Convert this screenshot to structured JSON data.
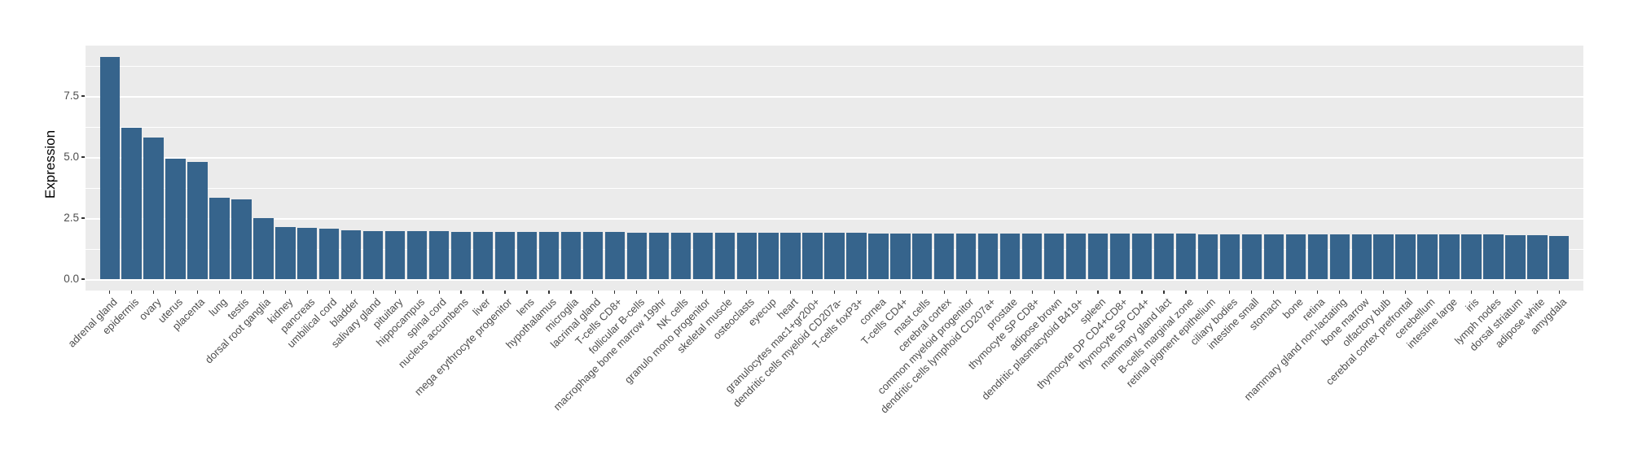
{
  "chart_data": {
    "type": "bar",
    "title": "",
    "xlabel": "",
    "ylabel": "Expression",
    "legend_position": "none",
    "grid": true,
    "y_ticks": [
      0.0,
      2.5,
      5.0,
      7.5
    ],
    "y_tick_labels": [
      "0.0",
      "2.5",
      "5.0",
      "7.5"
    ],
    "y_minor_ticks": [
      1.25,
      3.75,
      6.25,
      8.75
    ],
    "ylim": [
      -0.46,
      9.57
    ],
    "colors": {
      "bar": "#36648C",
      "panel_bg": "#EBEBEB",
      "grid": "#FFFFFF",
      "tick_label": "#4D4D4D",
      "axis_title": "#000000",
      "tick_mark": "#333333"
    },
    "categories": [
      "adrenal gland",
      "epidermis",
      "ovary",
      "uterus",
      "placenta",
      "lung",
      "testis",
      "dorsal root ganglia",
      "kidney",
      "pancreas",
      "umbilical cord",
      "bladder",
      "salivary gland",
      "pituitary",
      "hippocampus",
      "spinal cord",
      "nucleus accumbens",
      "liver",
      "mega erythrocyte progenitor",
      "lens",
      "hypothalamus",
      "microglia",
      "lacrimal gland",
      "T-cells CD8+",
      "follicular B-cells",
      "macrophage bone marrow 199hr",
      "NK cells",
      "granulo mono progenitor",
      "skeletal muscle",
      "osteoclasts",
      "eyecup",
      "heart",
      "granulocytes mac1+gr200+",
      "dendritic cells myeloid CD207a-",
      "T-cells foxP3+",
      "cornea",
      "T-cells CD4+",
      "mast cells",
      "cerebral cortex",
      "common myeloid progenitor",
      "dendritic cells lymphoid CD207a+",
      "prostate",
      "thymocyte SP CD8+",
      "adipose brown",
      "dendritic plasmacytoid B419+",
      "spleen",
      "thymocyte DP CD4+CD8+",
      "thymocyte SP CD4+",
      "mammary gland lact",
      "B-cells marginal zone",
      "retinal pigment epithelium",
      "ciliary bodies",
      "intestine small",
      "stomach",
      "bone",
      "retina",
      "mammary gland non-lactating",
      "bone marrow",
      "olfactory bulb",
      "cerebral cortex prefrontal",
      "cerebellum",
      "intestine large",
      "iris",
      "lymph nodes",
      "dorsal striatum",
      "adipose white",
      "amygdala"
    ],
    "values": [
      9.1,
      6.2,
      5.8,
      4.95,
      4.8,
      3.33,
      3.26,
      2.5,
      2.15,
      2.1,
      2.07,
      2.0,
      1.98,
      1.97,
      1.96,
      1.96,
      1.95,
      1.94,
      1.94,
      1.93,
      1.93,
      1.92,
      1.92,
      1.92,
      1.91,
      1.91,
      1.91,
      1.9,
      1.9,
      1.9,
      1.9,
      1.89,
      1.89,
      1.89,
      1.89,
      1.88,
      1.88,
      1.88,
      1.88,
      1.88,
      1.87,
      1.87,
      1.87,
      1.87,
      1.87,
      1.86,
      1.86,
      1.86,
      1.86,
      1.86,
      1.85,
      1.85,
      1.85,
      1.85,
      1.85,
      1.84,
      1.84,
      1.84,
      1.84,
      1.83,
      1.83,
      1.83,
      1.82,
      1.82,
      1.81,
      1.8,
      1.78
    ]
  }
}
